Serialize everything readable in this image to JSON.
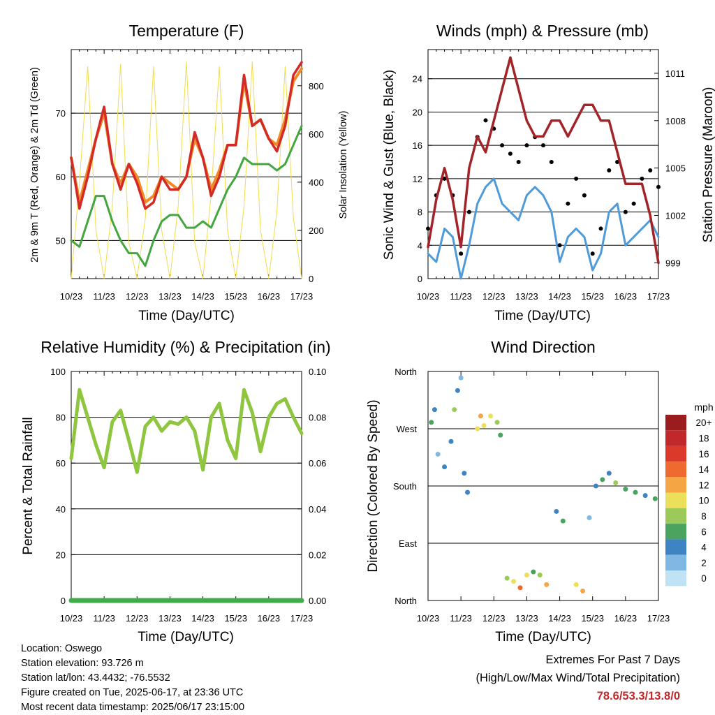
{
  "panels": {
    "temperature": {
      "title": "Temperature (F)",
      "ylabel_left": "2m & 9m T (Red, Orange) & 2m Td (Green)",
      "ylabel_right": "Solar Insolation (Yellow)",
      "xlabel": "Time (Day/UTC)"
    },
    "winds": {
      "title": "Winds (mph) & Pressure (mb)",
      "ylabel_left": "Sonic Wind & Gust (Blue, Black)",
      "ylabel_right": "Station Pressure (Maroon)",
      "xlabel": "Time (Day/UTC)"
    },
    "humidity": {
      "title": "Relative Humidity (%) & Precipitation (in)",
      "ylabel_left": "Percent & Total Rainfall",
      "xlabel": "Time (Day/UTC)"
    },
    "direction": {
      "title": "Wind Direction",
      "ylabel_left": "Direction (Colored By Speed)",
      "xlabel": "Time (Day/UTC)",
      "colorbar_title": "mph",
      "colorbar_labels": [
        "20+",
        "18",
        "16",
        "14",
        "12",
        "10",
        "8",
        "6",
        "4",
        "2",
        "0"
      ],
      "colorbar_colors": [
        "#9b1c1f",
        "#c0282b",
        "#db3a2b",
        "#ef6a2f",
        "#f6a545",
        "#ecdf5a",
        "#9bc95a",
        "#4aa35e",
        "#3f84c2",
        "#7fb8e3",
        "#bfe2f5"
      ]
    }
  },
  "info": {
    "location": "Location: Oswego",
    "elevation": "Station elevation: 93.726 m",
    "latlon": "Station lat/lon: 43.4432; -76.5532",
    "created": "Figure created on Tue, 2025-06-17, at 23:36 UTC",
    "recent": "Most recent data timestamp: 2025/06/17 23:15:00"
  },
  "extremes": {
    "heading": "Extremes For Past 7 Days",
    "legend": "(High/Low/Max Wind/Total Precipitation)",
    "values": "78.6/53.3/13.8/0"
  },
  "chart_data": [
    {
      "type": "line",
      "panel": "temperature",
      "title": "Temperature (F)",
      "xlabel": "Time (Day/UTC)",
      "ylabel": "2m & 9m T (Red, Orange) & 2m Td (Green)",
      "y2label": "Solar Insolation (Yellow)",
      "x": [
        0,
        0.25,
        0.5,
        0.75,
        1,
        1.25,
        1.5,
        1.75,
        2,
        2.25,
        2.5,
        2.75,
        3,
        3.25,
        3.5,
        3.75,
        4,
        4.25,
        4.5,
        4.75,
        5,
        5.25,
        5.5,
        5.75,
        6,
        6.25,
        6.5,
        6.75,
        7
      ],
      "xticks": [
        "10/23",
        "11/23",
        "12/23",
        "13/23",
        "14/23",
        "15/23",
        "16/23",
        "17/23"
      ],
      "ylim": [
        44,
        80
      ],
      "yticks": [
        50,
        60,
        70
      ],
      "y2lim": [
        0,
        950
      ],
      "y2ticks": [
        0,
        200,
        400,
        600,
        800
      ],
      "series": [
        {
          "name": "2m T",
          "color": "#d42a27",
          "values": [
            63,
            55,
            60,
            66,
            71,
            62,
            58,
            62,
            59,
            55,
            56,
            60,
            58,
            58,
            60,
            67,
            63,
            57,
            60,
            65,
            65,
            76,
            68,
            69,
            66,
            64,
            68,
            76,
            78
          ]
        },
        {
          "name": "9m T",
          "color": "#f08a24",
          "values": [
            63,
            56,
            61,
            66,
            70,
            62,
            59,
            62,
            60,
            56,
            57,
            60,
            59,
            58,
            60,
            66,
            63,
            58,
            61,
            65,
            65,
            75,
            68,
            69,
            66,
            65,
            69,
            75,
            77
          ]
        },
        {
          "name": "2m Td",
          "color": "#43a63f",
          "values": [
            50,
            49,
            53,
            57,
            57,
            53,
            50,
            48,
            48,
            46,
            50,
            53,
            54,
            54,
            52,
            52,
            53,
            52,
            55,
            58,
            60,
            63,
            62,
            62,
            62,
            61,
            62,
            65,
            68
          ]
        },
        {
          "name": "Solar Insolation",
          "color": "#f3dc4c",
          "axis": "y2",
          "values": [
            0,
            400,
            880,
            200,
            0,
            300,
            890,
            150,
            0,
            250,
            880,
            200,
            0,
            300,
            900,
            150,
            0,
            350,
            880,
            200,
            0,
            300,
            900,
            200,
            0,
            280,
            880,
            250,
            0
          ]
        }
      ]
    },
    {
      "type": "line",
      "panel": "winds",
      "title": "Winds (mph) & Pressure (mb)",
      "xlabel": "Time (Day/UTC)",
      "ylabel": "Sonic Wind & Gust (Blue, Black)",
      "y2label": "Station Pressure (Maroon)",
      "x": [
        0,
        0.25,
        0.5,
        0.75,
        1,
        1.25,
        1.5,
        1.75,
        2,
        2.25,
        2.5,
        2.75,
        3,
        3.25,
        3.5,
        3.75,
        4,
        4.25,
        4.5,
        4.75,
        5,
        5.25,
        5.5,
        5.75,
        6,
        6.25,
        6.5,
        6.75,
        7
      ],
      "xticks": [
        "10/23",
        "11/23",
        "12/23",
        "13/23",
        "14/23",
        "15/23",
        "16/23",
        "17/23"
      ],
      "ylim": [
        0,
        27.5
      ],
      "yticks": [
        0,
        4,
        8,
        12,
        16,
        20,
        24
      ],
      "y2lim": [
        998,
        1012.5
      ],
      "y2ticks": [
        999,
        1002,
        1005,
        1008,
        1011
      ],
      "series": [
        {
          "name": "Sonic Wind",
          "color": "#4f9bd9",
          "values": [
            3,
            2,
            6,
            5,
            0,
            4,
            9,
            11,
            12,
            9,
            8,
            7,
            10,
            11,
            10,
            8,
            2,
            5,
            6,
            5,
            1,
            3,
            8,
            9,
            4,
            5,
            6,
            7,
            5
          ]
        },
        {
          "name": "Gust",
          "color": "#000000",
          "values": [
            6,
            10,
            12,
            10,
            3,
            8,
            17,
            19,
            18,
            16,
            15,
            14,
            16,
            17,
            16,
            14,
            4,
            9,
            12,
            10,
            3,
            6,
            13,
            14,
            8,
            9,
            12,
            13,
            11
          ]
        },
        {
          "name": "Station Pressure",
          "color": "#a32428",
          "axis": "y2",
          "values": [
            1000,
            1003,
            1005,
            1003,
            1000,
            1005,
            1007,
            1006,
            1008,
            1010,
            1012,
            1010,
            1008,
            1007,
            1007,
            1008,
            1008,
            1007,
            1008,
            1009,
            1009,
            1008,
            1008,
            1006,
            1004,
            1004,
            1004,
            1002,
            999
          ]
        }
      ]
    },
    {
      "type": "line",
      "panel": "humidity",
      "title": "Relative Humidity (%) & Precipitation (in)",
      "xlabel": "Time (Day/UTC)",
      "ylabel": "Percent & Total Rainfall",
      "x": [
        0,
        0.25,
        0.5,
        0.75,
        1,
        1.25,
        1.5,
        1.75,
        2,
        2.25,
        2.5,
        2.75,
        3,
        3.25,
        3.5,
        3.75,
        4,
        4.25,
        4.5,
        4.75,
        5,
        5.25,
        5.5,
        5.75,
        6,
        6.25,
        6.5,
        6.75,
        7
      ],
      "xticks": [
        "10/23",
        "11/23",
        "12/23",
        "13/23",
        "14/23",
        "15/23",
        "16/23",
        "17/23"
      ],
      "ylim": [
        0,
        100
      ],
      "yticks": [
        0,
        20,
        40,
        60,
        80,
        100
      ],
      "y2lim": [
        0,
        0.1
      ],
      "y2ticks": [
        "0.00",
        "0.02",
        "0.04",
        "0.06",
        "0.08",
        "0.10"
      ],
      "series": [
        {
          "name": "Relative Humidity",
          "color": "#8ec63f",
          "values": [
            62,
            92,
            80,
            68,
            58,
            78,
            83,
            70,
            56,
            76,
            80,
            74,
            78,
            77,
            80,
            74,
            57,
            80,
            86,
            70,
            62,
            92,
            82,
            65,
            80,
            86,
            88,
            80,
            73
          ]
        },
        {
          "name": "Total Rainfall",
          "color": "#3fae49",
          "axis": "y2",
          "values": [
            0,
            0,
            0,
            0,
            0,
            0,
            0,
            0,
            0,
            0,
            0,
            0,
            0,
            0,
            0,
            0,
            0,
            0,
            0,
            0,
            0,
            0,
            0,
            0,
            0,
            0,
            0,
            0,
            0
          ]
        }
      ]
    },
    {
      "type": "scatter",
      "panel": "direction",
      "title": "Wind Direction",
      "xlabel": "Time (Day/UTC)",
      "ylabel": "Direction (Colored By Speed)",
      "xticks": [
        "10/23",
        "11/23",
        "12/23",
        "13/23",
        "14/23",
        "15/23",
        "16/23",
        "17/23"
      ],
      "yticks": [
        "North",
        "East",
        "South",
        "West",
        "North"
      ],
      "ylim": [
        0,
        360
      ],
      "points": [
        {
          "x": 0.1,
          "y": 280,
          "speed": 6
        },
        {
          "x": 0.2,
          "y": 300,
          "speed": 4
        },
        {
          "x": 0.3,
          "y": 230,
          "speed": 2
        },
        {
          "x": 0.5,
          "y": 210,
          "speed": 3
        },
        {
          "x": 0.7,
          "y": 250,
          "speed": 4
        },
        {
          "x": 0.8,
          "y": 300,
          "speed": 7
        },
        {
          "x": 0.9,
          "y": 330,
          "speed": 3
        },
        {
          "x": 1.0,
          "y": 350,
          "speed": 2
        },
        {
          "x": 1.1,
          "y": 200,
          "speed": 4
        },
        {
          "x": 1.2,
          "y": 170,
          "speed": 3
        },
        {
          "x": 1.5,
          "y": 270,
          "speed": 10
        },
        {
          "x": 1.6,
          "y": 290,
          "speed": 12
        },
        {
          "x": 1.7,
          "y": 275,
          "speed": 9
        },
        {
          "x": 1.9,
          "y": 290,
          "speed": 10
        },
        {
          "x": 2.1,
          "y": 280,
          "speed": 8
        },
        {
          "x": 2.2,
          "y": 260,
          "speed": 5
        },
        {
          "x": 2.4,
          "y": 35,
          "speed": 8
        },
        {
          "x": 2.6,
          "y": 30,
          "speed": 10
        },
        {
          "x": 2.8,
          "y": 20,
          "speed": 14
        },
        {
          "x": 3.0,
          "y": 40,
          "speed": 9
        },
        {
          "x": 3.2,
          "y": 45,
          "speed": 6
        },
        {
          "x": 3.4,
          "y": 40,
          "speed": 7
        },
        {
          "x": 3.6,
          "y": 25,
          "speed": 11
        },
        {
          "x": 3.9,
          "y": 140,
          "speed": 3
        },
        {
          "x": 4.1,
          "y": 125,
          "speed": 6
        },
        {
          "x": 4.5,
          "y": 25,
          "speed": 9
        },
        {
          "x": 4.7,
          "y": 15,
          "speed": 12
        },
        {
          "x": 4.9,
          "y": 130,
          "speed": 2
        },
        {
          "x": 5.1,
          "y": 180,
          "speed": 3
        },
        {
          "x": 5.3,
          "y": 190,
          "speed": 5
        },
        {
          "x": 5.5,
          "y": 200,
          "speed": 4
        },
        {
          "x": 5.7,
          "y": 185,
          "speed": 7
        },
        {
          "x": 6.0,
          "y": 175,
          "speed": 6
        },
        {
          "x": 6.3,
          "y": 170,
          "speed": 5
        },
        {
          "x": 6.6,
          "y": 165,
          "speed": 4
        },
        {
          "x": 6.9,
          "y": 160,
          "speed": 6
        }
      ]
    }
  ]
}
